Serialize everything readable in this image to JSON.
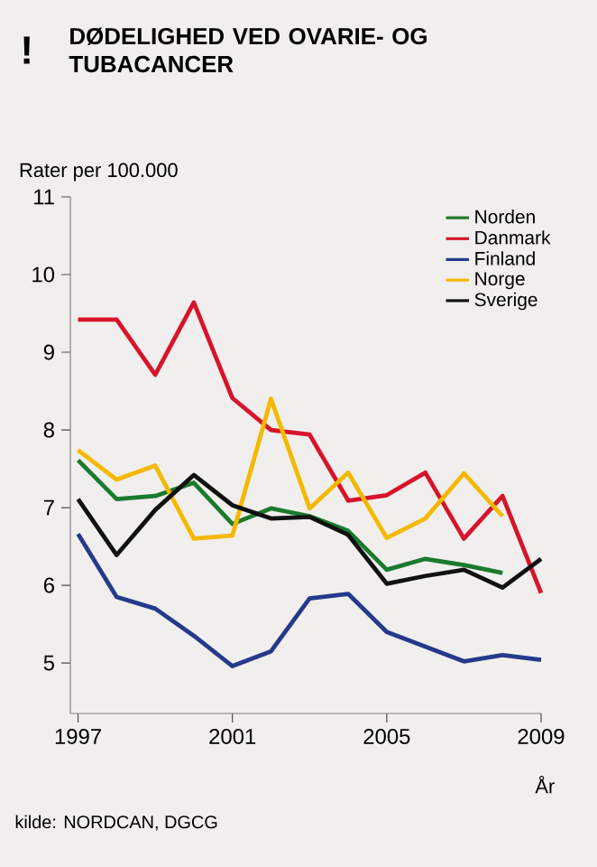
{
  "chart_data": {
    "type": "line",
    "title": "DØDELIGHED VED OVARIE- OG TUBACANCER",
    "ylabel": "Rater per 100.000",
    "xlabel": "År",
    "annotations": [
      "!",
      "kilde: NORDCAN, DGCG"
    ],
    "x": [
      1997,
      1998,
      1999,
      2000,
      2001,
      2002,
      2003,
      2004,
      2005,
      2006,
      2007,
      2008,
      2009
    ],
    "xlim": [
      1996.8,
      2009
    ],
    "xticks": [
      1997,
      2001,
      2005,
      2009
    ],
    "ylim": [
      4.35,
      11
    ],
    "yticks": [
      5,
      6,
      7,
      8,
      9,
      10,
      11
    ],
    "grid": false,
    "legend": "top right",
    "marker": "none",
    "line_style": "solid",
    "series": [
      {
        "name": "Norden",
        "color": "#1a7a2e",
        "values": [
          7.61,
          7.11,
          7.15,
          7.32,
          6.79,
          6.99,
          6.89,
          6.7,
          6.2,
          6.34,
          6.26,
          6.16,
          null
        ]
      },
      {
        "name": "Danmark",
        "color": "#d7142c",
        "values": [
          9.42,
          9.42,
          8.71,
          9.64,
          8.41,
          8.0,
          7.94,
          7.09,
          7.16,
          7.45,
          6.6,
          7.15,
          5.9
        ]
      },
      {
        "name": "Finland",
        "color": "#243a8c",
        "values": [
          6.66,
          5.85,
          5.7,
          5.35,
          4.96,
          5.15,
          5.83,
          5.89,
          5.4,
          5.21,
          5.02,
          5.1,
          5.04
        ]
      },
      {
        "name": "Norge",
        "color": "#f5b800",
        "values": [
          7.74,
          7.36,
          7.54,
          6.6,
          6.64,
          8.4,
          6.99,
          7.45,
          6.61,
          6.86,
          7.44,
          6.89,
          null
        ]
      },
      {
        "name": "Sverige",
        "color": "#111111",
        "values": [
          7.11,
          6.39,
          6.97,
          7.42,
          7.03,
          6.86,
          6.88,
          6.65,
          6.02,
          6.12,
          6.2,
          5.97,
          6.34
        ]
      }
    ]
  }
}
